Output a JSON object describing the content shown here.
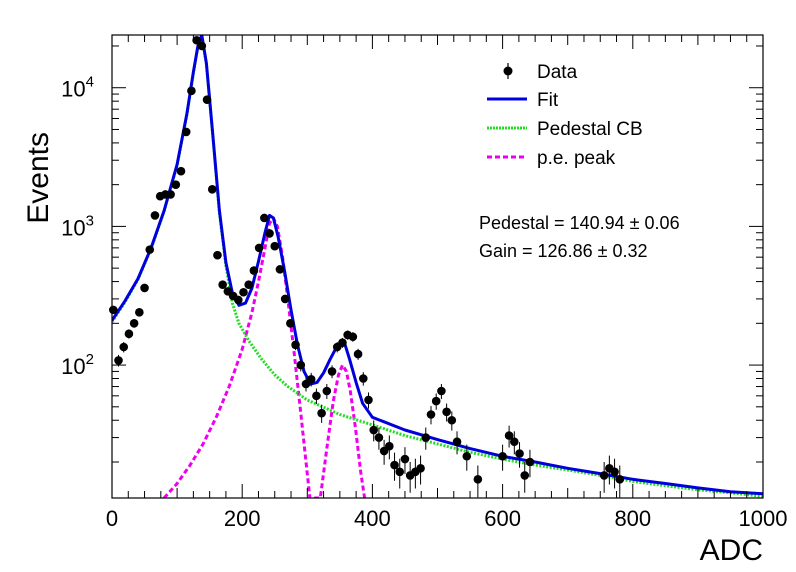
{
  "chart_data": {
    "type": "scatter",
    "xlabel": "ADC",
    "ylabel": "Events",
    "xlim": [
      0,
      1000
    ],
    "ylim": [
      11,
      24000
    ],
    "y_scale": "log",
    "grid": false,
    "legend_placement": "top-right",
    "x_ticks": [
      {
        "value": 0,
        "label": "0"
      },
      {
        "value": 200,
        "label": "200"
      },
      {
        "value": 400,
        "label": "400"
      },
      {
        "value": 600,
        "label": "600"
      },
      {
        "value": 800,
        "label": "800"
      },
      {
        "value": 1000,
        "label": "1000"
      }
    ],
    "y_ticks": [
      {
        "value": 100,
        "base": "10",
        "exp": "2"
      },
      {
        "value": 1000,
        "base": "10",
        "exp": "3"
      },
      {
        "value": 10000,
        "base": "10",
        "exp": "4"
      }
    ],
    "legend": [
      {
        "label": "Data",
        "style": "marker",
        "color": "#000000"
      },
      {
        "label": "Fit",
        "style": "solid",
        "color": "#0000dd"
      },
      {
        "label": "Pedestal CB",
        "style": "dotted",
        "color": "#22dd22"
      },
      {
        "label": "p.e. peak",
        "style": "dashed",
        "color": "#ee00ee"
      }
    ],
    "annotations": [
      {
        "id": "pedestal",
        "label": "Pedestal = 140.94",
        "pm": "±",
        "err": "0.06"
      },
      {
        "id": "gain",
        "label": "Gain = 126.86",
        "pm": "±",
        "err": "0.32"
      }
    ],
    "series": [
      {
        "name": "Data",
        "kind": "points",
        "color": "#000000",
        "points": [
          {
            "x": 2,
            "y": 250
          },
          {
            "x": 10,
            "y": 108
          },
          {
            "x": 18,
            "y": 135
          },
          {
            "x": 26,
            "y": 168
          },
          {
            "x": 34,
            "y": 200
          },
          {
            "x": 42,
            "y": 240
          },
          {
            "x": 50,
            "y": 360
          },
          {
            "x": 58,
            "y": 680
          },
          {
            "x": 66,
            "y": 1200
          },
          {
            "x": 74,
            "y": 1650
          },
          {
            "x": 82,
            "y": 1700
          },
          {
            "x": 90,
            "y": 1700
          },
          {
            "x": 98,
            "y": 2000
          },
          {
            "x": 106,
            "y": 2500
          },
          {
            "x": 114,
            "y": 4800
          },
          {
            "x": 122,
            "y": 9500
          },
          {
            "x": 130,
            "y": 22000
          },
          {
            "x": 138,
            "y": 20000
          },
          {
            "x": 146,
            "y": 8200
          },
          {
            "x": 154,
            "y": 1850
          },
          {
            "x": 162,
            "y": 620
          },
          {
            "x": 170,
            "y": 380
          },
          {
            "x": 178,
            "y": 340
          },
          {
            "x": 186,
            "y": 315
          },
          {
            "x": 194,
            "y": 295
          },
          {
            "x": 202,
            "y": 335
          },
          {
            "x": 210,
            "y": 380
          },
          {
            "x": 218,
            "y": 480
          },
          {
            "x": 226,
            "y": 700
          },
          {
            "x": 234,
            "y": 1150
          },
          {
            "x": 242,
            "y": 890
          },
          {
            "x": 250,
            "y": 720
          },
          {
            "x": 258,
            "y": 490
          },
          {
            "x": 266,
            "y": 300
          },
          {
            "x": 274,
            "y": 200
          },
          {
            "x": 282,
            "y": 140
          },
          {
            "x": 290,
            "y": 100
          },
          {
            "x": 298,
            "y": 73
          },
          {
            "x": 306,
            "y": 79
          },
          {
            "x": 314,
            "y": 60
          },
          {
            "x": 322,
            "y": 45
          },
          {
            "x": 330,
            "y": 65
          },
          {
            "x": 338,
            "y": 90
          },
          {
            "x": 346,
            "y": 135
          },
          {
            "x": 354,
            "y": 145
          },
          {
            "x": 362,
            "y": 165
          },
          {
            "x": 370,
            "y": 160
          },
          {
            "x": 378,
            "y": 120
          },
          {
            "x": 386,
            "y": 80
          },
          {
            "x": 394,
            "y": 56
          },
          {
            "x": 402,
            "y": 34
          },
          {
            "x": 410,
            "y": 30
          },
          {
            "x": 418,
            "y": 24
          },
          {
            "x": 426,
            "y": 26
          },
          {
            "x": 434,
            "y": 19
          },
          {
            "x": 442,
            "y": 17
          },
          {
            "x": 450,
            "y": 21
          },
          {
            "x": 458,
            "y": 16
          },
          {
            "x": 466,
            "y": 17
          },
          {
            "x": 474,
            "y": 18
          },
          {
            "x": 482,
            "y": 30
          },
          {
            "x": 490,
            "y": 44
          },
          {
            "x": 498,
            "y": 55
          },
          {
            "x": 506,
            "y": 65
          },
          {
            "x": 514,
            "y": 46
          },
          {
            "x": 522,
            "y": 40
          },
          {
            "x": 530,
            "y": 28
          },
          {
            "x": 545,
            "y": 22
          },
          {
            "x": 562,
            "y": 15
          },
          {
            "x": 600,
            "y": 22
          },
          {
            "x": 610,
            "y": 31
          },
          {
            "x": 618,
            "y": 28
          },
          {
            "x": 626,
            "y": 23
          },
          {
            "x": 634,
            "y": 16
          },
          {
            "x": 642,
            "y": 20
          },
          {
            "x": 756,
            "y": 16
          },
          {
            "x": 764,
            "y": 18
          },
          {
            "x": 772,
            "y": 17
          },
          {
            "x": 780,
            "y": 15
          }
        ]
      },
      {
        "name": "Fit",
        "kind": "line",
        "color": "#0000dd",
        "points": [
          {
            "x": 0,
            "y": 210
          },
          {
            "x": 20,
            "y": 290
          },
          {
            "x": 40,
            "y": 420
          },
          {
            "x": 60,
            "y": 700
          },
          {
            "x": 80,
            "y": 1300
          },
          {
            "x": 100,
            "y": 2800
          },
          {
            "x": 115,
            "y": 6500
          },
          {
            "x": 125,
            "y": 13000
          },
          {
            "x": 132,
            "y": 20000
          },
          {
            "x": 138,
            "y": 24000
          },
          {
            "x": 145,
            "y": 15000
          },
          {
            "x": 155,
            "y": 4500
          },
          {
            "x": 165,
            "y": 1300
          },
          {
            "x": 175,
            "y": 550
          },
          {
            "x": 185,
            "y": 330
          },
          {
            "x": 195,
            "y": 270
          },
          {
            "x": 205,
            "y": 280
          },
          {
            "x": 215,
            "y": 360
          },
          {
            "x": 225,
            "y": 560
          },
          {
            "x": 235,
            "y": 900
          },
          {
            "x": 242,
            "y": 1200
          },
          {
            "x": 248,
            "y": 1150
          },
          {
            "x": 255,
            "y": 850
          },
          {
            "x": 265,
            "y": 480
          },
          {
            "x": 275,
            "y": 250
          },
          {
            "x": 285,
            "y": 140
          },
          {
            "x": 295,
            "y": 90
          },
          {
            "x": 305,
            "y": 73
          },
          {
            "x": 315,
            "y": 75
          },
          {
            "x": 325,
            "y": 88
          },
          {
            "x": 335,
            "y": 110
          },
          {
            "x": 345,
            "y": 135
          },
          {
            "x": 352,
            "y": 148
          },
          {
            "x": 358,
            "y": 140
          },
          {
            "x": 365,
            "y": 110
          },
          {
            "x": 375,
            "y": 75
          },
          {
            "x": 385,
            "y": 53
          },
          {
            "x": 400,
            "y": 42
          },
          {
            "x": 450,
            "y": 34
          },
          {
            "x": 500,
            "y": 29
          },
          {
            "x": 550,
            "y": 25
          },
          {
            "x": 600,
            "y": 22
          },
          {
            "x": 650,
            "y": 20
          },
          {
            "x": 700,
            "y": 18
          },
          {
            "x": 750,
            "y": 16.5
          },
          {
            "x": 800,
            "y": 15
          },
          {
            "x": 850,
            "y": 14
          },
          {
            "x": 900,
            "y": 13
          },
          {
            "x": 950,
            "y": 12.2
          },
          {
            "x": 1000,
            "y": 11.8
          }
        ]
      },
      {
        "name": "Pedestal CB",
        "kind": "line",
        "color": "#22dd22",
        "points": [
          {
            "x": 0,
            "y": 205
          },
          {
            "x": 20,
            "y": 285
          },
          {
            "x": 40,
            "y": 415
          },
          {
            "x": 60,
            "y": 690
          },
          {
            "x": 80,
            "y": 1280
          },
          {
            "x": 100,
            "y": 2750
          },
          {
            "x": 115,
            "y": 6400
          },
          {
            "x": 125,
            "y": 12800
          },
          {
            "x": 132,
            "y": 19800
          },
          {
            "x": 138,
            "y": 23500
          },
          {
            "x": 145,
            "y": 14800
          },
          {
            "x": 155,
            "y": 4400
          },
          {
            "x": 165,
            "y": 1250
          },
          {
            "x": 175,
            "y": 520
          },
          {
            "x": 185,
            "y": 280
          },
          {
            "x": 195,
            "y": 200
          },
          {
            "x": 210,
            "y": 150
          },
          {
            "x": 230,
            "y": 110
          },
          {
            "x": 250,
            "y": 85
          },
          {
            "x": 270,
            "y": 70
          },
          {
            "x": 300,
            "y": 56
          },
          {
            "x": 350,
            "y": 44
          },
          {
            "x": 400,
            "y": 37
          },
          {
            "x": 450,
            "y": 31
          },
          {
            "x": 500,
            "y": 27
          },
          {
            "x": 550,
            "y": 23.5
          },
          {
            "x": 600,
            "y": 21
          },
          {
            "x": 650,
            "y": 19
          },
          {
            "x": 700,
            "y": 17.5
          },
          {
            "x": 750,
            "y": 16
          },
          {
            "x": 800,
            "y": 14.5
          },
          {
            "x": 850,
            "y": 13.5
          },
          {
            "x": 900,
            "y": 12.6
          },
          {
            "x": 950,
            "y": 12
          },
          {
            "x": 1000,
            "y": 11.3
          }
        ]
      },
      {
        "name": "p.e. peak",
        "kind": "line",
        "color": "#ee00ee",
        "points": [
          {
            "x": 80,
            "y": 11
          },
          {
            "x": 100,
            "y": 14
          },
          {
            "x": 120,
            "y": 19
          },
          {
            "x": 140,
            "y": 27
          },
          {
            "x": 160,
            "y": 42
          },
          {
            "x": 180,
            "y": 70
          },
          {
            "x": 200,
            "y": 130
          },
          {
            "x": 215,
            "y": 240
          },
          {
            "x": 225,
            "y": 400
          },
          {
            "x": 235,
            "y": 700
          },
          {
            "x": 242,
            "y": 1050
          },
          {
            "x": 248,
            "y": 1150
          },
          {
            "x": 254,
            "y": 1000
          },
          {
            "x": 262,
            "y": 600
          },
          {
            "x": 270,
            "y": 300
          },
          {
            "x": 280,
            "y": 120
          },
          {
            "x": 290,
            "y": 45
          },
          {
            "x": 298,
            "y": 20
          },
          {
            "x": 304,
            "y": 11
          },
          {
            "x": 320,
            "y": 11
          },
          {
            "x": 330,
            "y": 25
          },
          {
            "x": 340,
            "y": 55
          },
          {
            "x": 348,
            "y": 85
          },
          {
            "x": 354,
            "y": 100
          },
          {
            "x": 360,
            "y": 90
          },
          {
            "x": 366,
            "y": 65
          },
          {
            "x": 374,
            "y": 35
          },
          {
            "x": 382,
            "y": 17
          },
          {
            "x": 388,
            "y": 11
          }
        ]
      }
    ]
  }
}
